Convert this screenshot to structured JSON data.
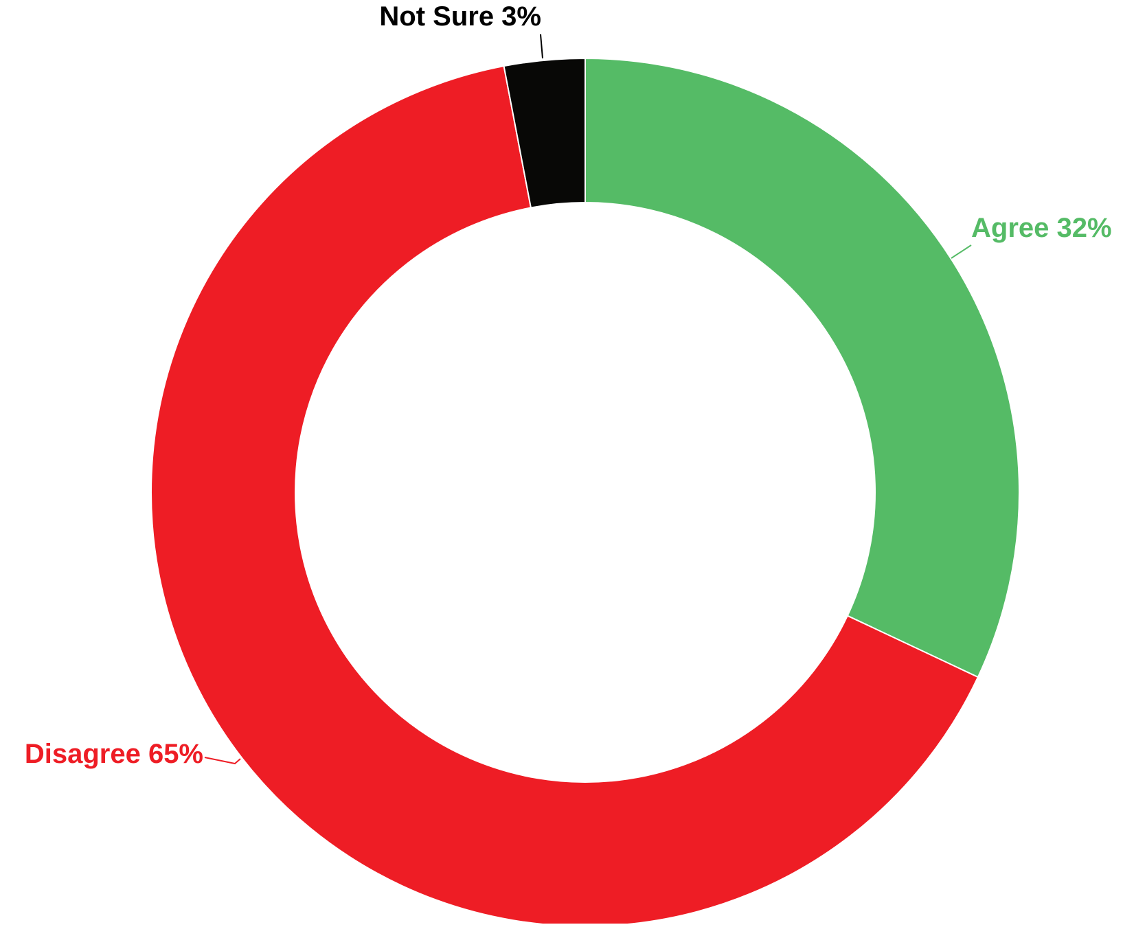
{
  "chart_data": {
    "type": "pie",
    "donut": true,
    "slices": [
      {
        "label": "Agree",
        "value": 32,
        "value_text": "32%",
        "color": "#55bb66",
        "label_color": "#55bb66"
      },
      {
        "label": "Disagree",
        "value": 65,
        "value_text": "65%",
        "color": "#ee1d25",
        "label_color": "#ee1d25"
      },
      {
        "label": "Not Sure",
        "value": 3,
        "value_text": "3%",
        "color": "#080806",
        "label_color": "#000000"
      }
    ],
    "start": "12 o'clock",
    "direction": "clockwise",
    "legend": "none",
    "labels": "outside with leader lines"
  }
}
